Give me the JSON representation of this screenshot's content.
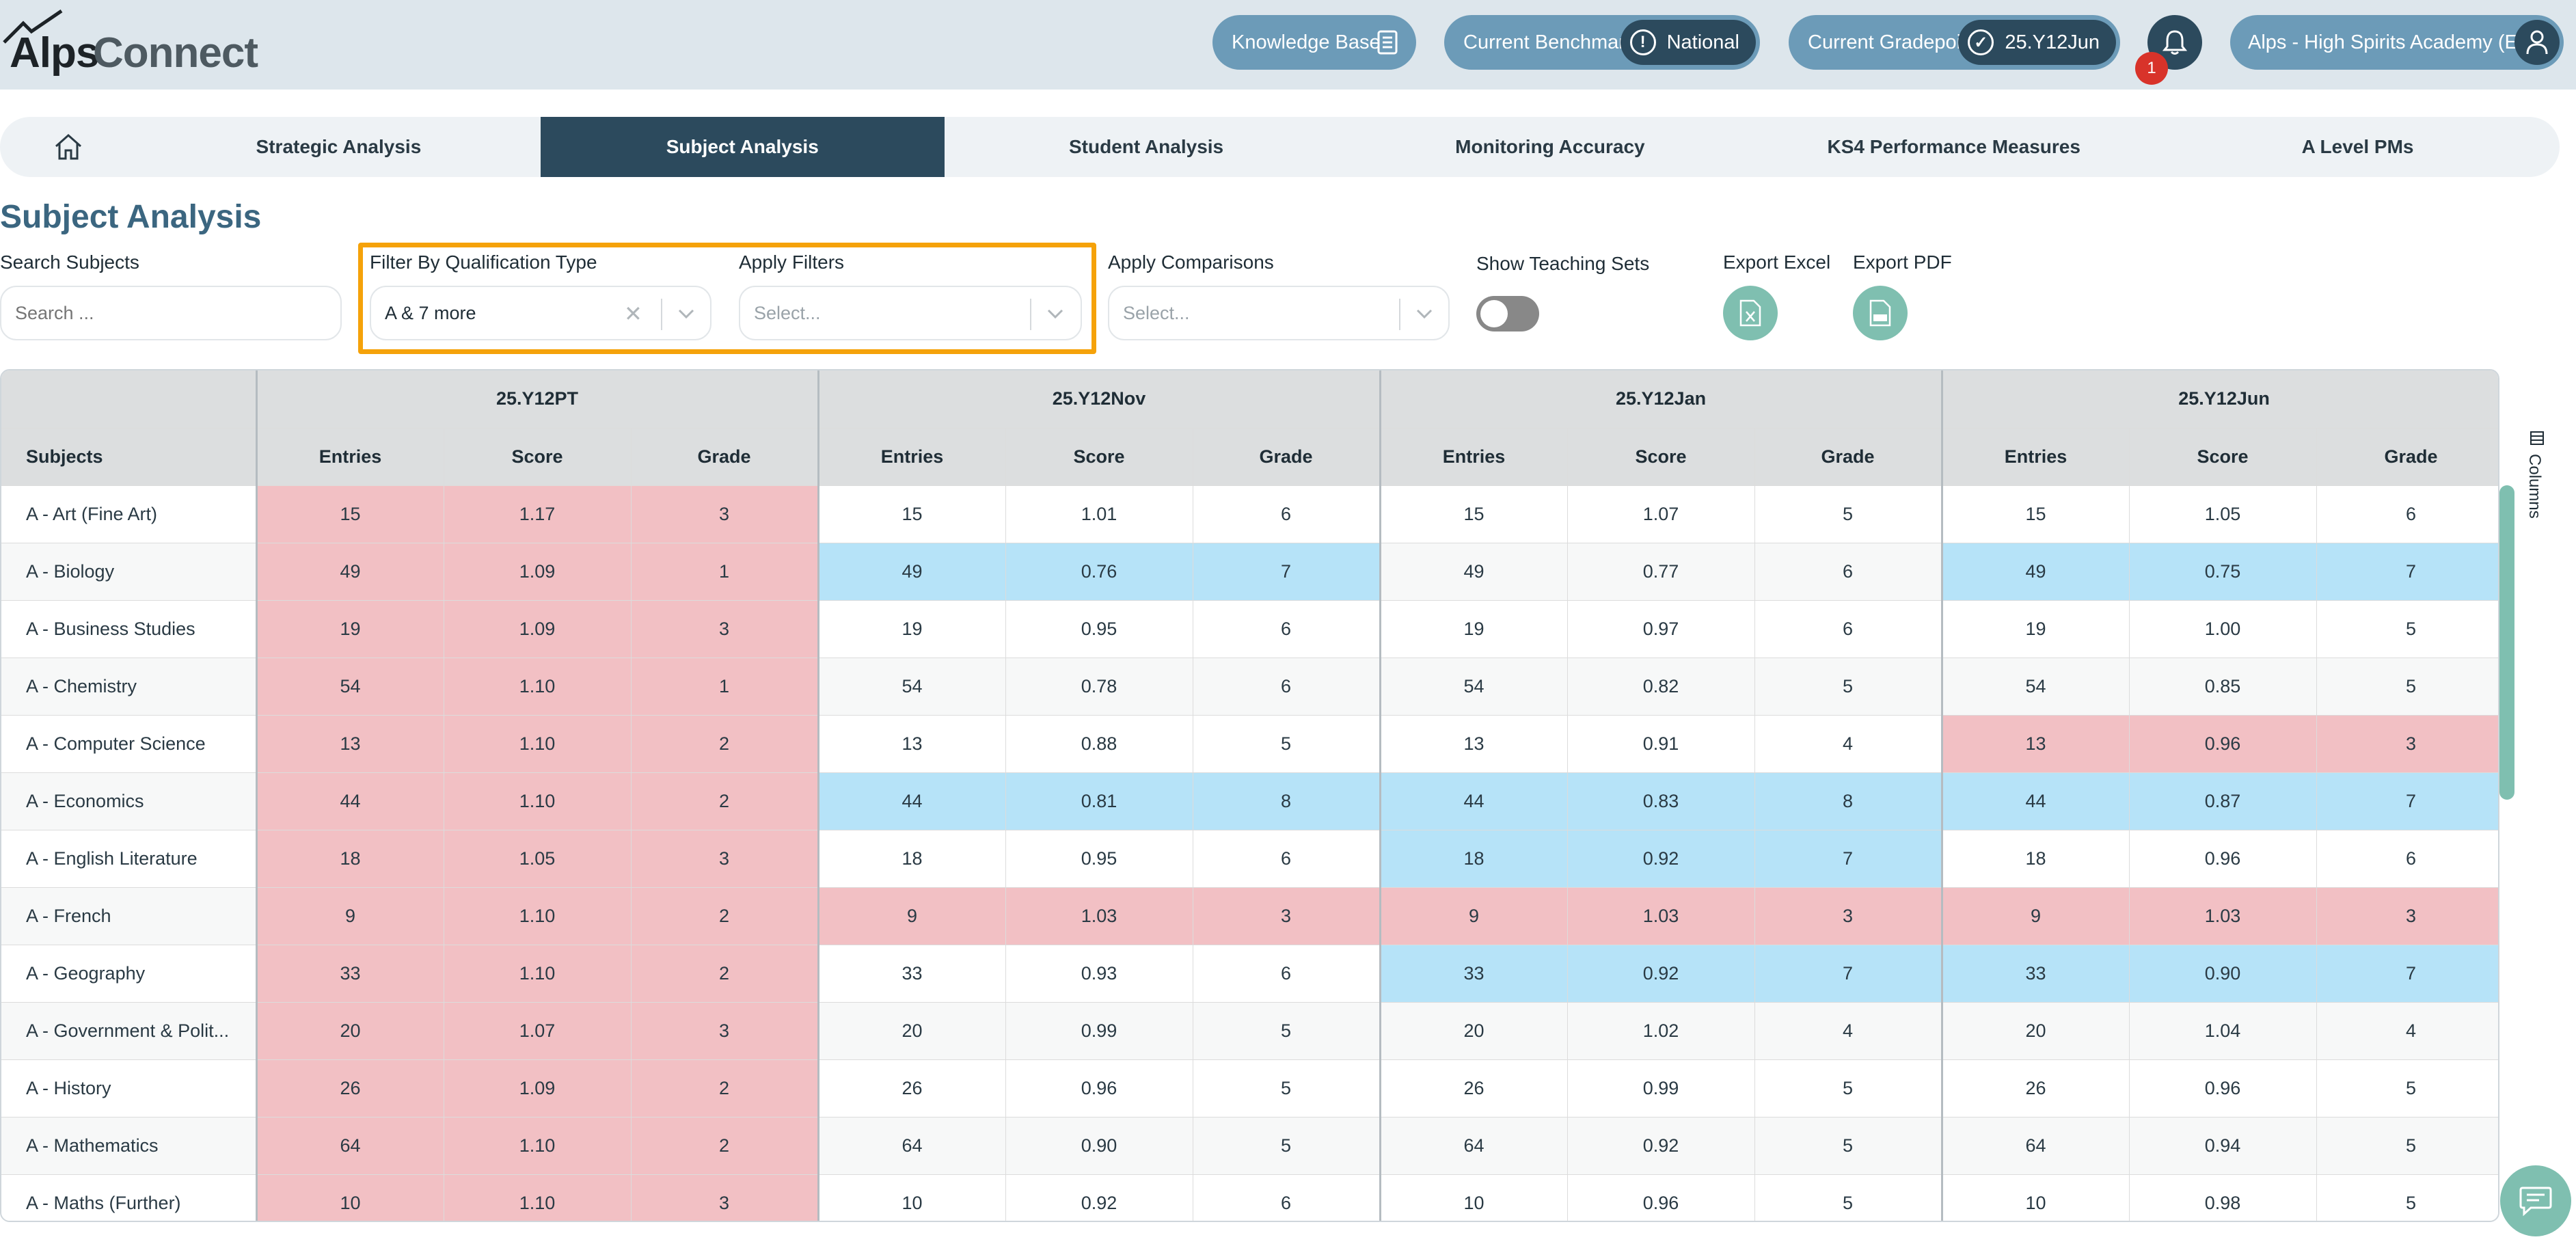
{
  "logo": {
    "part1": "Alps",
    "part2": "Connect"
  },
  "header": {
    "knowledge_base": "Knowledge Base",
    "benchmark_label": "Current Benchmark",
    "benchmark_value": "National",
    "gradepoint_label": "Current Gradepoint",
    "gradepoint_value": "25.Y12Jun",
    "notification_count": "1",
    "school_name": "Alps - High Spirits Academy (E)"
  },
  "nav": {
    "tabs": [
      {
        "label": "Strategic Analysis"
      },
      {
        "label": "Subject Analysis",
        "active": true
      },
      {
        "label": "Student Analysis"
      },
      {
        "label": "Monitoring Accuracy"
      },
      {
        "label": "KS4 Performance Measures"
      },
      {
        "label": "A Level PMs"
      }
    ]
  },
  "page": {
    "title": "Subject Analysis",
    "search_label": "Search Subjects",
    "search_placeholder": "Search ...",
    "qual_label": "Filter By Qualification Type",
    "qual_value": "A & 7 more",
    "filters_label": "Apply Filters",
    "filters_placeholder": "Select...",
    "comparisons_label": "Apply Comparisons",
    "comparisons_placeholder": "Select...",
    "teaching_sets_label": "Show Teaching Sets",
    "export_excel_label": "Export Excel",
    "export_pdf_label": "Export PDF"
  },
  "table": {
    "subjects_header": "Subjects",
    "groups": [
      "25.Y12PT",
      "25.Y12Nov",
      "25.Y12Jan",
      "25.Y12Jun"
    ],
    "sub_headers": [
      "Entries",
      "Score",
      "Grade"
    ],
    "columns_label": "Columns",
    "rows": [
      {
        "subject": "A - Art (Fine Art)",
        "cells": [
          [
            "15",
            "1.17",
            "3"
          ],
          [
            "15",
            "1.01",
            "6"
          ],
          [
            "15",
            "1.07",
            "5"
          ],
          [
            "15",
            "1.05",
            "6"
          ]
        ],
        "colors": [
          "red",
          "",
          "",
          ""
        ]
      },
      {
        "subject": "A - Biology",
        "cells": [
          [
            "49",
            "1.09",
            "1"
          ],
          [
            "49",
            "0.76",
            "7"
          ],
          [
            "49",
            "0.77",
            "6"
          ],
          [
            "49",
            "0.75",
            "7"
          ]
        ],
        "colors": [
          "red",
          "blue",
          "",
          "blue"
        ]
      },
      {
        "subject": "A - Business Studies",
        "cells": [
          [
            "19",
            "1.09",
            "3"
          ],
          [
            "19",
            "0.95",
            "6"
          ],
          [
            "19",
            "0.97",
            "6"
          ],
          [
            "19",
            "1.00",
            "5"
          ]
        ],
        "colors": [
          "red",
          "",
          "",
          ""
        ]
      },
      {
        "subject": "A - Chemistry",
        "cells": [
          [
            "54",
            "1.10",
            "1"
          ],
          [
            "54",
            "0.78",
            "6"
          ],
          [
            "54",
            "0.82",
            "5"
          ],
          [
            "54",
            "0.85",
            "5"
          ]
        ],
        "colors": [
          "red",
          "",
          "",
          ""
        ]
      },
      {
        "subject": "A - Computer Science",
        "cells": [
          [
            "13",
            "1.10",
            "2"
          ],
          [
            "13",
            "0.88",
            "5"
          ],
          [
            "13",
            "0.91",
            "4"
          ],
          [
            "13",
            "0.96",
            "3"
          ]
        ],
        "colors": [
          "red",
          "",
          "",
          "red"
        ]
      },
      {
        "subject": "A - Economics",
        "cells": [
          [
            "44",
            "1.10",
            "2"
          ],
          [
            "44",
            "0.81",
            "8"
          ],
          [
            "44",
            "0.83",
            "8"
          ],
          [
            "44",
            "0.87",
            "7"
          ]
        ],
        "colors": [
          "red",
          "blue",
          "blue",
          "blue"
        ]
      },
      {
        "subject": "A - English Literature",
        "cells": [
          [
            "18",
            "1.05",
            "3"
          ],
          [
            "18",
            "0.95",
            "6"
          ],
          [
            "18",
            "0.92",
            "7"
          ],
          [
            "18",
            "0.96",
            "6"
          ]
        ],
        "colors": [
          "red",
          "",
          "blue",
          ""
        ]
      },
      {
        "subject": "A - French",
        "cells": [
          [
            "9",
            "1.10",
            "2"
          ],
          [
            "9",
            "1.03",
            "3"
          ],
          [
            "9",
            "1.03",
            "3"
          ],
          [
            "9",
            "1.03",
            "3"
          ]
        ],
        "colors": [
          "red",
          "red",
          "red",
          "red"
        ]
      },
      {
        "subject": "A - Geography",
        "cells": [
          [
            "33",
            "1.10",
            "2"
          ],
          [
            "33",
            "0.93",
            "6"
          ],
          [
            "33",
            "0.92",
            "7"
          ],
          [
            "33",
            "0.90",
            "7"
          ]
        ],
        "colors": [
          "red",
          "",
          "blue",
          "blue"
        ]
      },
      {
        "subject": "A - Government & Polit...",
        "cells": [
          [
            "20",
            "1.07",
            "3"
          ],
          [
            "20",
            "0.99",
            "5"
          ],
          [
            "20",
            "1.02",
            "4"
          ],
          [
            "20",
            "1.04",
            "4"
          ]
        ],
        "colors": [
          "red",
          "",
          "",
          ""
        ]
      },
      {
        "subject": "A - History",
        "cells": [
          [
            "26",
            "1.09",
            "2"
          ],
          [
            "26",
            "0.96",
            "5"
          ],
          [
            "26",
            "0.99",
            "5"
          ],
          [
            "26",
            "0.96",
            "5"
          ]
        ],
        "colors": [
          "red",
          "",
          "",
          ""
        ]
      },
      {
        "subject": "A - Mathematics",
        "cells": [
          [
            "64",
            "1.10",
            "2"
          ],
          [
            "64",
            "0.90",
            "5"
          ],
          [
            "64",
            "0.92",
            "5"
          ],
          [
            "64",
            "0.94",
            "5"
          ]
        ],
        "colors": [
          "red",
          "",
          "",
          ""
        ]
      },
      {
        "subject": "A - Maths (Further)",
        "cells": [
          [
            "10",
            "1.10",
            "3"
          ],
          [
            "10",
            "0.92",
            "6"
          ],
          [
            "10",
            "0.96",
            "5"
          ],
          [
            "10",
            "0.98",
            "5"
          ]
        ],
        "colors": [
          "red",
          "",
          "",
          ""
        ]
      }
    ]
  },
  "colors": {
    "accent": "#2c4a5d",
    "pill": "#6c9bb8",
    "red_cell": "#f2c0c4",
    "blue_cell": "#b6e3f8",
    "highlight": "#f5a20a",
    "teal": "#7fbfb0"
  }
}
